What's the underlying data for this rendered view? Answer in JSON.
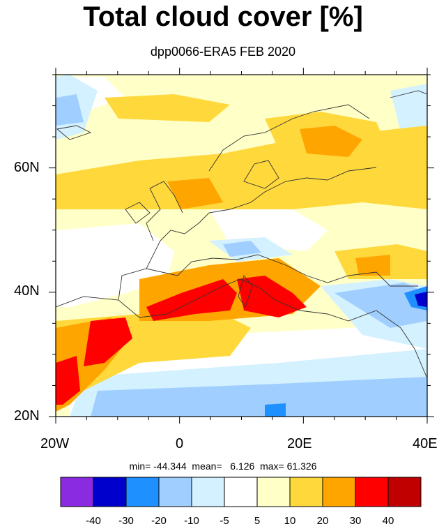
{
  "title": "Total cloud cover [%]",
  "subtitle": "dpp0066-ERA5 FEB 2020",
  "axes": {
    "lat_labels": [
      "60N",
      "40N",
      "20N"
    ],
    "lon_labels": [
      "20W",
      "0",
      "20E",
      "40E"
    ],
    "lon_range": [
      -20,
      40
    ],
    "lat_range": [
      20,
      75
    ]
  },
  "stats": {
    "text": "min= -44.344  mean=   6.126  max= 61.326",
    "min": -44.344,
    "mean": 6.126,
    "max": 61.326
  },
  "colorbar": {
    "colors": [
      "#8a2be2",
      "#0000cd",
      "#1e90ff",
      "#a0cfff",
      "#d4f1ff",
      "#ffffff",
      "#ffffc8",
      "#ffd83c",
      "#ffa500",
      "#ff0000",
      "#c00000"
    ],
    "labels": [
      "-40",
      "-30",
      "-20",
      "-10",
      "-5",
      "5",
      "10",
      "20",
      "30",
      "40"
    ]
  }
}
